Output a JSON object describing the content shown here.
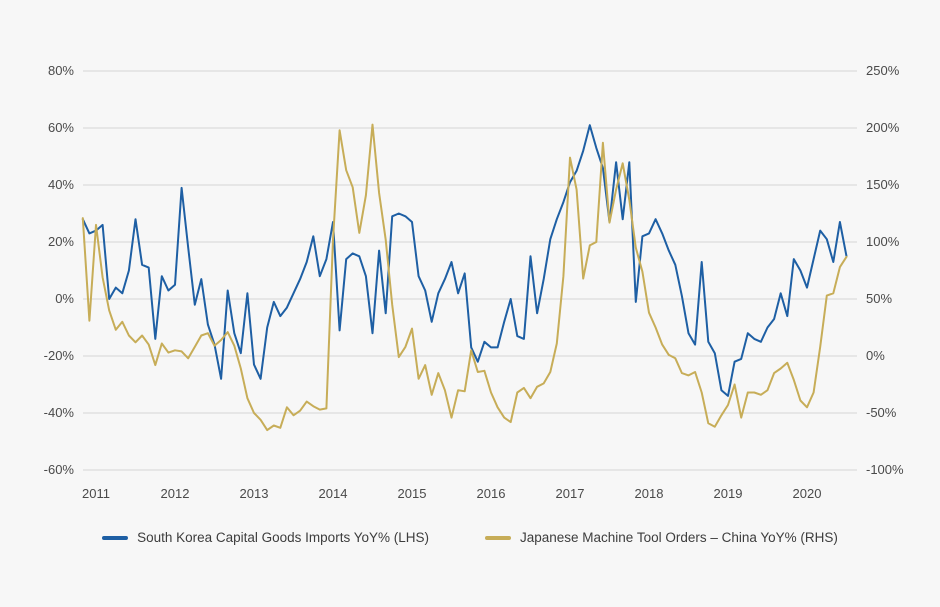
{
  "colors": {
    "background": "#f7f7f7",
    "grid": "#d4d4d4",
    "axis_text": "#4a4a4a",
    "series_blue": "#1e5fa4",
    "series_gold": "#c7ad58"
  },
  "chart_data": {
    "type": "line",
    "title": "",
    "frequency": "monthly",
    "start_period": "2010-11",
    "end_period": "2020-07",
    "grid": "horizontal",
    "legend_position": "bottom",
    "x_axis": {
      "tick_labels": [
        "2011",
        "2012",
        "2013",
        "2014",
        "2015",
        "2016",
        "2017",
        "2018",
        "2019",
        "2020"
      ]
    },
    "left_axis": {
      "min": -60,
      "max": 80,
      "tick_step": 20,
      "tick_labels": [
        "80%",
        "60%",
        "40%",
        "20%",
        "0%",
        "-20%",
        "-40%",
        "-60%"
      ]
    },
    "right_axis": {
      "min": -100,
      "max": 250,
      "tick_step": 50,
      "tick_labels": [
        "250%",
        "200%",
        "150%",
        "100%",
        "50%",
        "0%",
        "-50%",
        "-100%"
      ]
    },
    "series": [
      {
        "name": "South Korea Capital Goods Imports YoY% (LHS)",
        "axis": "left",
        "color": "#1e5fa4",
        "values": [
          28,
          23,
          24,
          26,
          0,
          4,
          2,
          10,
          28,
          12,
          11,
          -14,
          8,
          3,
          5,
          39,
          18,
          -2,
          7,
          -9,
          -16,
          -28,
          3,
          -12,
          -19,
          2,
          -23,
          -28,
          -10,
          -1,
          -6,
          -3,
          2,
          7,
          13,
          22,
          8,
          14,
          27,
          -11,
          14,
          16,
          15,
          8,
          -12,
          17,
          -5,
          29,
          30,
          29,
          27,
          8,
          3,
          -8,
          2,
          7,
          13,
          2,
          9,
          -17,
          -22,
          -15,
          -17,
          -17,
          -8,
          0,
          -13,
          -14,
          15,
          -5,
          7,
          21,
          28,
          34,
          41,
          45,
          52,
          61,
          53,
          46,
          27,
          48,
          28,
          48,
          -1,
          22,
          23,
          28,
          23,
          17,
          12,
          1,
          -12,
          -16,
          13,
          -15,
          -19,
          -32,
          -34,
          -22,
          -21,
          -12,
          -14,
          -15,
          -10,
          -7,
          2,
          -6,
          14,
          10,
          4,
          14,
          24,
          21,
          13,
          27,
          15
        ]
      },
      {
        "name": "Japanese Machine Tool Orders – China YoY% (RHS)",
        "axis": "right",
        "color": "#c7ad58",
        "values": [
          121,
          31,
          115,
          69,
          40,
          23,
          30,
          18,
          12,
          18,
          10,
          -8,
          11,
          3,
          5,
          4,
          -2,
          8,
          18,
          20,
          9,
          14,
          21,
          9,
          -11,
          -37,
          -50,
          -56,
          -65,
          -61,
          -63,
          -45,
          -52,
          -48,
          -40,
          -44,
          -47,
          -46,
          102,
          198,
          163,
          148,
          108,
          141,
          203,
          143,
          102,
          45,
          -1,
          8,
          24,
          -20,
          -8,
          -34,
          -15,
          -30,
          -54,
          -30,
          -31,
          5,
          -14,
          -13,
          -32,
          -45,
          -54,
          -58,
          -32,
          -28,
          -37,
          -27,
          -24,
          -14,
          11,
          70,
          174,
          146,
          68,
          97,
          100,
          187,
          117,
          146,
          169,
          137,
          95,
          74,
          38,
          25,
          10,
          1,
          -2,
          -15,
          -17,
          -14,
          -32,
          -59,
          -62,
          -52,
          -43,
          -25,
          -54,
          -32,
          -32,
          -34,
          -30,
          -15,
          -11,
          -6,
          -21,
          -39,
          -45,
          -32,
          8,
          53,
          55,
          78,
          87
        ]
      }
    ]
  }
}
